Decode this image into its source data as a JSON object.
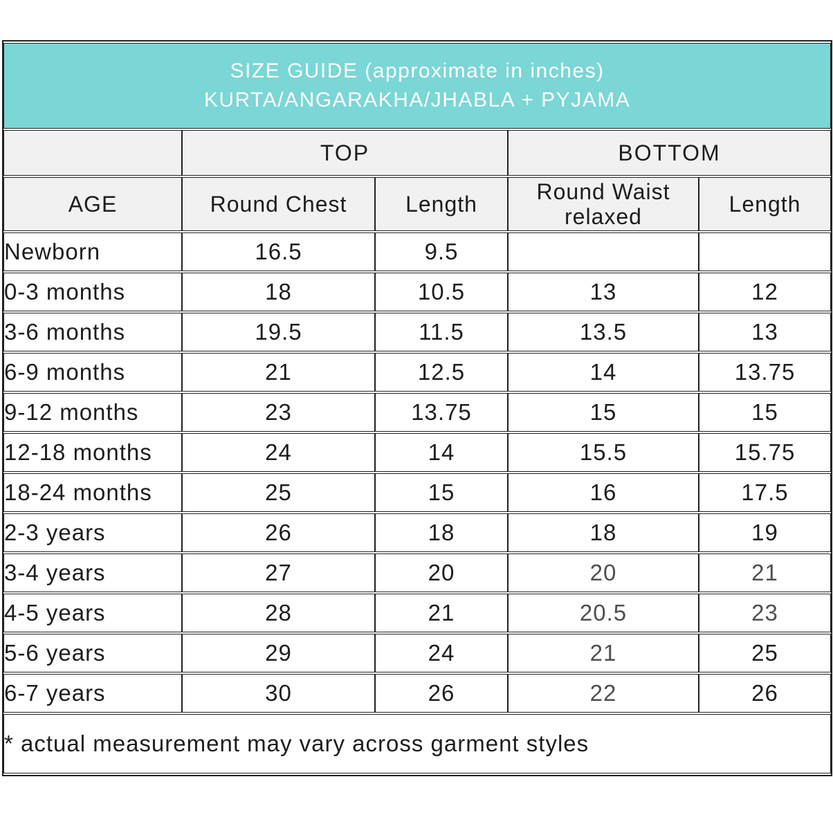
{
  "colors": {
    "header_background": "#7bd6d6",
    "header_text": "#ffffff",
    "subheader_background": "#f1f1f1",
    "border": "#202020",
    "text": "#1d1d1d",
    "muted_text": "#4f4f4f",
    "page_background": "#ffffff"
  },
  "title": {
    "line1": "SIZE GUIDE (approximate in inches)",
    "line2": "KURTA/ANGARAKHA/JHABLA + PYJAMA"
  },
  "table": {
    "group_headers": [
      {
        "label": "",
        "span": 1
      },
      {
        "label": "TOP",
        "span": 2
      },
      {
        "label": "BOTTOM",
        "span": 2
      }
    ],
    "column_headers": [
      "AGE",
      "Round Chest",
      "Length",
      "Round Waist relaxed",
      "Length"
    ],
    "rows": [
      {
        "age": "Newborn",
        "values": [
          "16.5",
          "9.5",
          "",
          ""
        ],
        "muted": []
      },
      {
        "age": "0-3 months",
        "values": [
          "18",
          "10.5",
          "13",
          "12"
        ],
        "muted": []
      },
      {
        "age": "3-6 months",
        "values": [
          "19.5",
          "11.5",
          "13.5",
          "13"
        ],
        "muted": []
      },
      {
        "age": "6-9 months",
        "values": [
          "21",
          "12.5",
          "14",
          "13.75"
        ],
        "muted": []
      },
      {
        "age": "9-12 months",
        "values": [
          "23",
          "13.75",
          "15",
          "15"
        ],
        "muted": []
      },
      {
        "age": "12-18 months",
        "values": [
          "24",
          "14",
          "15.5",
          "15.75"
        ],
        "muted": []
      },
      {
        "age": "18-24 months",
        "values": [
          "25",
          "15",
          "16",
          "17.5"
        ],
        "muted": []
      },
      {
        "age": "2-3 years",
        "values": [
          "26",
          "18",
          "18",
          "19"
        ],
        "muted": []
      },
      {
        "age": "3-4 years",
        "values": [
          "27",
          "20",
          "20",
          "21"
        ],
        "muted": [
          2,
          3
        ]
      },
      {
        "age": "4-5 years",
        "values": [
          "28",
          "21",
          "20.5",
          "23"
        ],
        "muted": [
          2,
          3
        ]
      },
      {
        "age": "5-6 years",
        "values": [
          "29",
          "24",
          "21",
          "25"
        ],
        "muted": [
          2
        ]
      },
      {
        "age": "6-7 years",
        "values": [
          "30",
          "26",
          "22",
          "26"
        ],
        "muted": [
          2
        ]
      }
    ],
    "footnote": "* actual measurement may vary across garment styles"
  }
}
